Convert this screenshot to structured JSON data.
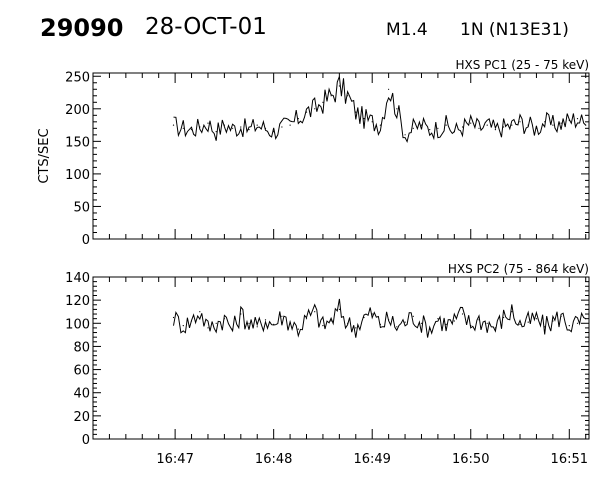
{
  "header": {
    "event_id": "29090",
    "date": "28-OCT-01",
    "flare_class": "M1.4",
    "location": "1N (N13E31)"
  },
  "chart_data": [
    {
      "type": "line",
      "title": "HXS PC1 (25 - 75 keV)",
      "ylabel": "CTS/SEC",
      "xlabel": "",
      "ylim": [
        0,
        255
      ],
      "yticks": [
        0,
        50,
        100,
        150,
        200,
        250
      ],
      "ytick_labels": [
        "0",
        "50",
        "100",
        "150",
        "200",
        "250"
      ],
      "x_range": [
        "16:46:10",
        "16:51:12"
      ],
      "xticks": [
        "16:47",
        "16:48",
        "16:49",
        "16:50",
        "16:51"
      ],
      "grid": false,
      "series": [
        {
          "x": [
            "16:46:59",
            "16:47:05",
            "16:47:10",
            "16:47:15",
            "16:47:20",
            "16:47:25",
            "16:47:30",
            "16:47:35",
            "16:47:40",
            "16:47:45",
            "16:47:50",
            "16:47:55",
            "16:48:00",
            "16:48:05",
            "16:48:10",
            "16:48:15",
            "16:48:20",
            "16:48:25",
            "16:48:30",
            "16:48:35",
            "16:48:40",
            "16:48:45",
            "16:48:50",
            "16:48:55",
            "16:49:00",
            "16:49:05",
            "16:49:10",
            "16:49:15",
            "16:49:20",
            "16:49:25",
            "16:49:30",
            "16:49:35",
            "16:49:40",
            "16:49:45",
            "16:49:50",
            "16:49:55",
            "16:50:00",
            "16:50:05",
            "16:50:10",
            "16:50:15",
            "16:50:20",
            "16:50:25",
            "16:50:30",
            "16:50:35",
            "16:50:40",
            "16:50:45",
            "16:50:50",
            "16:50:55",
            "16:51:00",
            "16:51:05",
            "16:51:10"
          ],
          "values": [
            175,
            170,
            168,
            172,
            178,
            165,
            175,
            170,
            172,
            168,
            175,
            170,
            165,
            172,
            175,
            185,
            195,
            200,
            210,
            220,
            235,
            220,
            195,
            185,
            180,
            175,
            230,
            200,
            160,
            170,
            175,
            168,
            170,
            175,
            165,
            172,
            178,
            170,
            175,
            168,
            172,
            175,
            180,
            175,
            170,
            180,
            175,
            178,
            182,
            185,
            175
          ]
        }
      ]
    },
    {
      "type": "line",
      "title": "HXS PC2 (75 - 864 keV)",
      "ylabel": "",
      "xlabel": "",
      "ylim": [
        0,
        140
      ],
      "yticks": [
        0,
        20,
        40,
        60,
        80,
        100,
        120,
        140
      ],
      "ytick_labels": [
        "0",
        "20",
        "40",
        "60",
        "80",
        "100",
        "120",
        "140"
      ],
      "x_range": [
        "16:46:10",
        "16:51:12"
      ],
      "xticks": [
        "16:47",
        "16:48",
        "16:49",
        "16:50",
        "16:51"
      ],
      "xtick_labels": [
        "16:47",
        "16:48",
        "16:49",
        "16:50",
        "16:51"
      ],
      "grid": false,
      "series": [
        {
          "x": [
            "16:46:59",
            "16:47:05",
            "16:47:10",
            "16:47:15",
            "16:47:20",
            "16:47:25",
            "16:47:30",
            "16:47:35",
            "16:47:40",
            "16:47:45",
            "16:47:50",
            "16:47:55",
            "16:48:00",
            "16:48:05",
            "16:48:10",
            "16:48:15",
            "16:48:20",
            "16:48:25",
            "16:48:30",
            "16:48:35",
            "16:48:40",
            "16:48:45",
            "16:48:50",
            "16:48:55",
            "16:49:00",
            "16:49:05",
            "16:49:10",
            "16:49:15",
            "16:49:20",
            "16:49:25",
            "16:49:30",
            "16:49:35",
            "16:49:40",
            "16:49:45",
            "16:49:50",
            "16:49:55",
            "16:50:00",
            "16:50:05",
            "16:50:10",
            "16:50:15",
            "16:50:20",
            "16:50:25",
            "16:50:30",
            "16:50:35",
            "16:50:40",
            "16:50:45",
            "16:50:50",
            "16:50:55",
            "16:51:00",
            "16:51:05",
            "16:51:10"
          ],
          "values": [
            105,
            98,
            102,
            110,
            96,
            100,
            104,
            95,
            108,
            100,
            97,
            103,
            99,
            106,
            101,
            95,
            104,
            110,
            98,
            102,
            112,
            100,
            96,
            105,
            108,
            99,
            103,
            97,
            101,
            106,
            100,
            95,
            104,
            99,
            102,
            108,
            98,
            103,
            100,
            96,
            105,
            110,
            99,
            101,
            104,
            97,
            102,
            106,
            98,
            100,
            104
          ]
        }
      ]
    }
  ]
}
